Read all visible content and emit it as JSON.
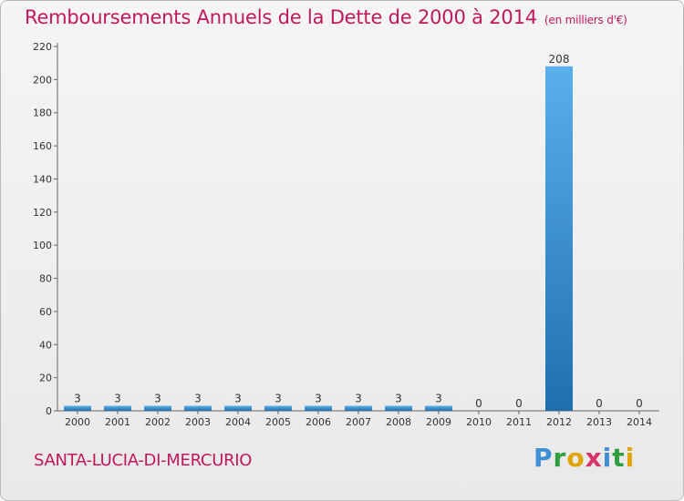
{
  "header": {
    "title": "Remboursements Annuels de la Dette de 2000 à 2014",
    "unit": "(en milliers d'€)"
  },
  "footer": {
    "commune": "SANTA-LUCIA-DI-MERCURIO",
    "brand_letters": [
      {
        "ch": "P",
        "color": "#3f8fd6"
      },
      {
        "ch": "r",
        "color": "#2e9e3e"
      },
      {
        "ch": "o",
        "color": "#e0a400"
      },
      {
        "ch": "x",
        "color": "#d6336c"
      },
      {
        "ch": "i",
        "color": "#3f8fd6"
      },
      {
        "ch": "t",
        "color": "#2e9e3e"
      },
      {
        "ch": "i",
        "color": "#e0a400"
      }
    ]
  },
  "chart_data": {
    "type": "bar",
    "title": "Remboursements Annuels de la Dette de 2000 à 2014",
    "subtitle": "(en milliers d'€)",
    "categories": [
      "2000",
      "2001",
      "2002",
      "2003",
      "2004",
      "2005",
      "2006",
      "2007",
      "2008",
      "2009",
      "2010",
      "2011",
      "2012",
      "2013",
      "2014"
    ],
    "values": [
      3,
      3,
      3,
      3,
      3,
      3,
      3,
      3,
      3,
      3,
      0,
      0,
      208,
      0,
      0
    ],
    "ylim": [
      0,
      220
    ],
    "yticks": [
      0,
      20,
      40,
      60,
      80,
      100,
      120,
      140,
      160,
      180,
      200,
      220
    ],
    "grid": false,
    "colors": {
      "bar_light": "#5aaee8",
      "bar_dark": "#1f6fae",
      "axis": "#666666",
      "label": "#333333"
    }
  }
}
